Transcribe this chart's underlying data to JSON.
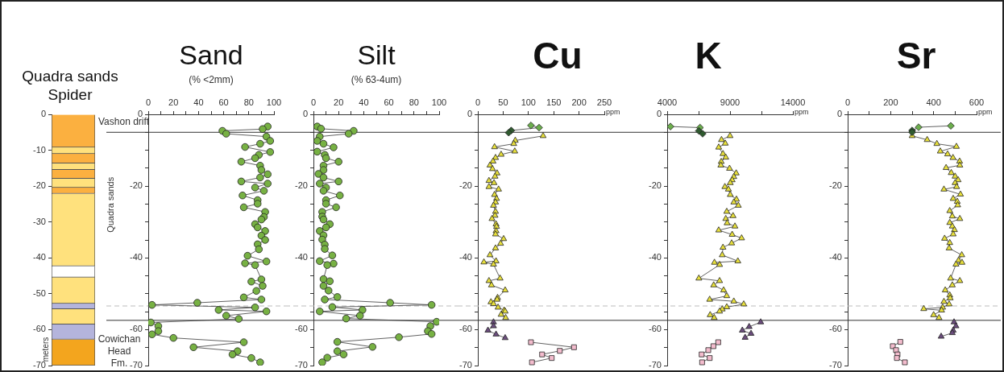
{
  "chart_data": [
    {
      "type": "bar",
      "title": "Quadra sands Spider",
      "ylabel": "meters",
      "categories": [
        null
      ],
      "stacked": true,
      "ylim": [
        -70,
        0
      ],
      "yticks": [
        0,
        -10,
        -20,
        -30,
        -40,
        -50,
        -60,
        -70
      ],
      "annotations": [
        "Vashon drift",
        "Quadra sands",
        "Cowichan Head Fm."
      ],
      "series": [
        {
          "color": "#fbb040",
          "values": [
            -9.2
          ]
        },
        {
          "color": "#ffe17d",
          "values": [
            -1.8
          ]
        },
        {
          "color": "#fbb040",
          "values": [
            -2.6
          ]
        },
        {
          "color": "#ffe17d",
          "values": [
            -1.8
          ]
        },
        {
          "color": "#fbb040",
          "values": [
            -2.5
          ]
        },
        {
          "color": "#ffe17d",
          "values": [
            -2.5
          ]
        },
        {
          "color": "#fbb040",
          "values": [
            -1.7
          ]
        },
        {
          "color": "#ffe17d",
          "values": [
            -20.2
          ]
        },
        {
          "color": "#ffffff",
          "values": [
            -3.1
          ]
        },
        {
          "color": "#ffe17d",
          "values": [
            -7.3
          ]
        },
        {
          "color": "#b4b4dc",
          "values": [
            -1.5
          ]
        },
        {
          "color": "#ffe17d",
          "values": [
            -4.3
          ]
        },
        {
          "color": "#b4b4dc",
          "values": [
            -4.2
          ]
        },
        {
          "color": "#f3a51e",
          "values": [
            -7.3
          ]
        }
      ]
    },
    {
      "type": "line",
      "title": "Sand",
      "subtitle": "(% <2mm)",
      "marker": "circle",
      "line_style": "solid",
      "xlim": [
        0,
        100
      ],
      "xticks": [
        0,
        {
          "value": 10,
          "label": null
        },
        20,
        {
          "value": 30,
          "label": null
        },
        40,
        {
          "value": 50,
          "label": null
        },
        60,
        {
          "value": 70,
          "label": null
        },
        80,
        {
          "value": 90,
          "label": null
        },
        100
      ],
      "ylim": [
        -70,
        0
      ],
      "yticks": [
        0,
        {
          "value": -5,
          "label": null
        },
        {
          "value": -10,
          "label": null
        },
        {
          "value": -15,
          "label": null
        },
        -20,
        {
          "value": -25,
          "label": null
        },
        {
          "value": -30,
          "label": null
        },
        {
          "value": -35,
          "label": null
        },
        -40,
        {
          "value": -45,
          "label": null
        },
        {
          "value": -50,
          "label": null
        },
        {
          "value": -55,
          "label": null
        },
        -60,
        {
          "value": -65,
          "label": null
        },
        -70
      ],
      "ref_lines": [
        {
          "axis": "y",
          "value": -5,
          "color": "#333333"
        },
        {
          "axis": "y",
          "value": -53.4,
          "color": "#bbbbbb",
          "line_style": "dashed"
        },
        {
          "axis": "y",
          "value": -57.4,
          "color": "#333333"
        }
      ],
      "series": [
        {
          "color": "#77b143",
          "x": [
            95,
            91,
            59,
            62,
            94,
            97,
            89,
            77,
            97,
            88,
            85,
            74,
            89,
            90,
            95,
            89,
            74,
            95,
            85,
            92,
            75,
            87,
            87,
            76,
            93,
            92,
            90,
            85,
            87,
            93,
            90,
            93,
            87,
            88,
            79,
            94,
            77,
            85,
            90,
            82,
            91,
            86,
            76,
            90,
            39,
            3,
            85,
            56,
            94,
            62,
            72,
            2,
            8,
            8,
            3,
            20,
            76,
            36,
            71,
            67,
            82,
            89
          ],
          "values": [
            -3.4,
            -4.1,
            -4.6,
            -5.4,
            -6.2,
            -7.4,
            -8.2,
            -9.1,
            -10.5,
            -11.3,
            -12.2,
            -13.2,
            -14.3,
            -15.5,
            -16.7,
            -17.6,
            -18.7,
            -19.3,
            -20.4,
            -21.3,
            -22.6,
            -23.9,
            -24.9,
            -25.9,
            -27.2,
            -28.6,
            -29.3,
            -30.6,
            -31.5,
            -32.5,
            -33.8,
            -35.0,
            -36.2,
            -37.6,
            -39.4,
            -41.0,
            -41.5,
            -42.0,
            -46.0,
            -46.6,
            -47.8,
            -49.2,
            -51.0,
            -51.6,
            -52.5,
            -53.1,
            -53.8,
            -54.5,
            -54.9,
            -56.1,
            -57.0,
            -58.0,
            -59.0,
            -60.4,
            -61.3,
            -62.3,
            -63.5,
            -64.9,
            -66.0,
            -66.9,
            -67.9,
            -69.1
          ]
        }
      ]
    },
    {
      "type": "line",
      "title": "Silt",
      "subtitle": "(% 63-4um)",
      "marker": "circle",
      "line_style": "solid",
      "xlim": [
        0,
        100
      ],
      "xticks": [
        0,
        {
          "value": 10,
          "label": null
        },
        20,
        {
          "value": 30,
          "label": null
        },
        40,
        {
          "value": 50,
          "label": null
        },
        60,
        {
          "value": 70,
          "label": null
        },
        80,
        {
          "value": 90,
          "label": null
        },
        100
      ],
      "ylim": [
        -70,
        0
      ],
      "yticks": [
        0,
        {
          "value": -5,
          "label": null
        },
        {
          "value": -10,
          "label": null
        },
        {
          "value": -15,
          "label": null
        },
        -20,
        {
          "value": -25,
          "label": null
        },
        {
          "value": -30,
          "label": null
        },
        {
          "value": -35,
          "label": null
        },
        -40,
        {
          "value": -45,
          "label": null
        },
        {
          "value": -50,
          "label": null
        },
        {
          "value": -55,
          "label": null
        },
        -60,
        {
          "value": -65,
          "label": null
        },
        -70
      ],
      "ref_lines": [
        {
          "axis": "y",
          "value": -5,
          "color": "#333333"
        },
        {
          "axis": "y",
          "value": -53.4,
          "color": "#bbbbbb",
          "line_style": "dashed"
        },
        {
          "axis": "y",
          "value": -57.4,
          "color": "#333333"
        }
      ],
      "series": [
        {
          "color": "#77b143",
          "x": [
            3,
            6,
            32,
            28,
            5,
            3,
            8,
            16,
            3,
            9,
            10,
            20,
            8,
            8,
            4,
            8,
            20,
            5,
            10,
            8,
            21,
            10,
            10,
            18,
            7,
            7,
            8,
            13,
            10,
            5,
            8,
            7,
            9,
            9,
            15,
            5,
            16,
            11,
            8,
            13,
            8,
            12,
            19,
            9,
            61,
            94,
            15,
            39,
            5,
            37,
            26,
            98,
            93,
            91,
            94,
            68,
            19,
            47,
            19,
            24,
            11,
            7
          ],
          "values": [
            -3.4,
            -4.0,
            -4.6,
            -5.4,
            -6.2,
            -7.4,
            -8.2,
            -9.2,
            -10.4,
            -11.3,
            -12.2,
            -13.2,
            -14.3,
            -15.5,
            -16.6,
            -17.6,
            -18.7,
            -19.3,
            -20.4,
            -21.3,
            -22.6,
            -23.9,
            -24.9,
            -25.9,
            -27.2,
            -28.5,
            -29.3,
            -30.6,
            -31.5,
            -32.5,
            -33.7,
            -34.9,
            -36.3,
            -37.5,
            -39.3,
            -40.9,
            -41.6,
            -42.0,
            -45.9,
            -46.5,
            -47.8,
            -49.1,
            -50.9,
            -51.6,
            -52.5,
            -53.1,
            -53.7,
            -54.5,
            -54.9,
            -56.1,
            -56.9,
            -57.8,
            -59.0,
            -60.4,
            -61.2,
            -62.1,
            -63.4,
            -64.8,
            -66.0,
            -66.9,
            -67.8,
            -69.1
          ]
        }
      ]
    },
    {
      "type": "line",
      "title": "Cu",
      "xlabel": "ppm",
      "line_style": "solid",
      "xlim": [
        0,
        250
      ],
      "xticks": [
        0,
        50,
        100,
        150,
        200,
        250
      ],
      "ylim": [
        -70,
        0
      ],
      "yticks": [
        0,
        {
          "value": -5,
          "label": null
        },
        {
          "value": -10,
          "label": null
        },
        {
          "value": -15,
          "label": null
        },
        -20,
        {
          "value": -25,
          "label": null
        },
        {
          "value": -30,
          "label": null
        },
        {
          "value": -35,
          "label": null
        },
        -40,
        {
          "value": -45,
          "label": null
        },
        {
          "value": -50,
          "label": null
        },
        {
          "value": -55,
          "label": null
        },
        -60,
        {
          "value": -65,
          "label": null
        },
        -70
      ],
      "ref_lines": [
        {
          "axis": "y",
          "value": -5,
          "color": "#333333"
        },
        {
          "axis": "y",
          "value": -53.4,
          "color": "#bbbbbb",
          "line_style": "dashed"
        },
        {
          "axis": "y",
          "value": -57.4,
          "color": "#333333"
        }
      ],
      "series": [
        {
          "colors": [
            "#6cae4d",
            "#6cae4d",
            "#2f5a2f",
            "#2f5a2f"
          ],
          "marker": "diamond",
          "x": [
            105,
            121,
            66,
            61
          ],
          "values": [
            -3.1,
            -3.7,
            -4.5,
            -5.1
          ]
        },
        {
          "color": "#e8e03c",
          "marker": "triangle",
          "x": [
            129,
            74,
            71,
            33,
            73,
            46,
            35,
            30,
            24,
            29,
            38,
            34,
            22,
            32,
            22,
            41,
            33,
            37,
            35,
            31,
            35,
            34,
            28,
            36,
            37,
            36,
            35,
            51,
            45,
            35,
            24,
            36,
            12,
            31,
            44,
            22,
            27,
            54,
            39,
            38,
            26,
            31,
            40,
            52,
            54,
            46,
            55
          ],
          "values": [
            -6.0,
            -7.3,
            -8.2,
            -9.1,
            -10.3,
            -11.2,
            -12.1,
            -13.1,
            -14.2,
            -15.2,
            -16.4,
            -17.3,
            -18.5,
            -19.1,
            -20.2,
            -20.9,
            -22.4,
            -23.5,
            -24.5,
            -25.4,
            -27.1,
            -28.2,
            -29.1,
            -30.6,
            -31.3,
            -32.5,
            -33.4,
            -34.7,
            -36.0,
            -37.3,
            -39.2,
            -40.9,
            -41.2,
            -41.8,
            -45.7,
            -46.4,
            -47.6,
            -49.0,
            -51.1,
            -51.6,
            -52.3,
            -52.8,
            -53.8,
            -54.6,
            -54.9,
            -55.8,
            -56.7
          ]
        },
        {
          "color": "#6b4d7d",
          "marker": "triangle",
          "x": [
            31,
            31,
            20,
            36,
            54
          ],
          "values": [
            -57.9,
            -59.0,
            -60.2,
            -61.3,
            -62.3
          ]
        },
        {
          "color": "#f3bccd",
          "marker": "square",
          "x": [
            105,
            190,
            162,
            127,
            146,
            107
          ],
          "values": [
            -63.5,
            -64.9,
            -65.9,
            -66.9,
            -67.9,
            -69.1
          ]
        }
      ]
    },
    {
      "type": "line",
      "title": "K",
      "xlabel": "ppm",
      "line_style": "solid",
      "xlim": [
        4000,
        14000
      ],
      "xticks": [
        4000,
        {
          "value": 6500,
          "label": null
        },
        9000,
        {
          "value": 11500,
          "label": null
        },
        14000
      ],
      "ylim": [
        -70,
        0
      ],
      "yticks": [
        0,
        {
          "value": -5,
          "label": null
        },
        {
          "value": -10,
          "label": null
        },
        {
          "value": -15,
          "label": null
        },
        -20,
        {
          "value": -25,
          "label": null
        },
        {
          "value": -30,
          "label": null
        },
        {
          "value": -35,
          "label": null
        },
        -40,
        {
          "value": -45,
          "label": null
        },
        {
          "value": -50,
          "label": null
        },
        {
          "value": -55,
          "label": null
        },
        -60,
        {
          "value": -65,
          "label": null
        },
        -70
      ],
      "ref_lines": [
        {
          "axis": "y",
          "value": -5,
          "color": "#333333"
        },
        {
          "axis": "y",
          "value": -53.4,
          "color": "#bbbbbb",
          "line_style": "dashed"
        },
        {
          "axis": "y",
          "value": -57.4,
          "color": "#333333"
        }
      ],
      "series": [
        {
          "colors": [
            "#6cae4d",
            "#6cae4d",
            "#2f5a2f",
            "#2f5a2f"
          ],
          "marker": "diamond",
          "x": [
            4260,
            6610,
            6520,
            6820
          ],
          "values": [
            -3.4,
            -3.7,
            -4.6,
            -5.4
          ]
        },
        {
          "color": "#e8e03c",
          "marker": "triangle",
          "x": [
            9000,
            8320,
            8620,
            8100,
            8440,
            8660,
            8300,
            8270,
            8960,
            9490,
            9300,
            9170,
            9020,
            8590,
            8870,
            9020,
            9510,
            9300,
            9660,
            8740,
            9240,
            8660,
            8770,
            9390,
            8100,
            9170,
            9920,
            9130,
            8440,
            8380,
            9620,
            7760,
            8170,
            6520,
            8170,
            7700,
            8490,
            8740,
            7380,
            9300,
            10090,
            8740,
            8380,
            8170,
            7420,
            7740
          ],
          "values": [
            -6.0,
            -7.1,
            -8.1,
            -9.2,
            -11.0,
            -12.0,
            -13.2,
            -14.2,
            -15.1,
            -16.4,
            -17.4,
            -18.3,
            -19.1,
            -20.2,
            -20.9,
            -22.4,
            -23.7,
            -24.5,
            -25.4,
            -27.1,
            -28.3,
            -29.1,
            -30.3,
            -31.2,
            -32.3,
            -33.5,
            -34.5,
            -35.9,
            -37.1,
            -39.2,
            -40.9,
            -41.3,
            -41.9,
            -45.7,
            -46.4,
            -47.6,
            -49.0,
            -50.6,
            -51.6,
            -52.1,
            -52.9,
            -53.7,
            -54.3,
            -54.9,
            -55.9,
            -56.7
          ]
        },
        {
          "color": "#6b4d7d",
          "marker": "triangle",
          "x": [
            11440,
            10520,
            9980,
            10670,
            10200
          ],
          "values": [
            -57.9,
            -59.2,
            -60.2,
            -61.1,
            -62.2
          ]
        },
        {
          "color": "#f3bccd",
          "marker": "square",
          "x": [
            8060,
            7680,
            7270,
            6740,
            7380,
            6780
          ],
          "values": [
            -63.5,
            -64.6,
            -65.7,
            -66.9,
            -67.9,
            -69.1
          ]
        }
      ]
    },
    {
      "type": "line",
      "title": "Sr",
      "xlabel": "ppm",
      "line_style": "solid",
      "xlim": [
        0,
        600
      ],
      "xticks": [
        0,
        {
          "value": 100,
          "label": null
        },
        200,
        {
          "value": 300,
          "label": null
        },
        400,
        {
          "value": 500,
          "label": null
        },
        600
      ],
      "ylim": [
        -70,
        0
      ],
      "yticks": [
        0,
        {
          "value": -5,
          "label": null
        },
        {
          "value": -10,
          "label": null
        },
        {
          "value": -15,
          "label": null
        },
        -20,
        {
          "value": -25,
          "label": null
        },
        {
          "value": -30,
          "label": null
        },
        {
          "value": -35,
          "label": null
        },
        -40,
        {
          "value": -45,
          "label": null
        },
        {
          "value": -50,
          "label": null
        },
        {
          "value": -55,
          "label": null
        },
        -60,
        {
          "value": -65,
          "label": null
        },
        -70
      ],
      "ref_lines": [
        {
          "axis": "y",
          "value": -5,
          "color": "#333333"
        },
        {
          "axis": "y",
          "value": -53.4,
          "color": "#bbbbbb",
          "line_style": "dashed"
        },
        {
          "axis": "y",
          "value": -57.4,
          "color": "#333333"
        }
      ],
      "series": [
        {
          "colors": [
            "#6cae4d",
            "#6cae4d",
            "#2f5a2f",
            "#2f5a2f"
          ],
          "marker": "diamond",
          "x": [
            480,
            330,
            300,
            300
          ],
          "values": [
            -3.2,
            -3.6,
            -4.5,
            -5.0
          ]
        },
        {
          "color": "#e8e03c",
          "marker": "triangle",
          "x": [
            300,
            370,
            415,
            506,
            431,
            465,
            490,
            521,
            522,
            458,
            482,
            500,
            514,
            500,
            507,
            448,
            525,
            491,
            510,
            512,
            475,
            487,
            522,
            475,
            487,
            497,
            491,
            451,
            475,
            472,
            531,
            516,
            532,
            504,
            479,
            522,
            487,
            454,
            475,
            477,
            448,
            472,
            442,
            354,
            437,
            400,
            425
          ],
          "values": [
            -6.0,
            -7.1,
            -8.2,
            -9.0,
            -10.3,
            -11.1,
            -12.1,
            -13.1,
            -14.2,
            -14.9,
            -16.3,
            -17.3,
            -18.3,
            -19.1,
            -20.2,
            -20.9,
            -22.3,
            -23.5,
            -24.3,
            -25.3,
            -26.9,
            -28.4,
            -29.1,
            -30.2,
            -31.2,
            -32.2,
            -33.4,
            -34.6,
            -35.8,
            -37.3,
            -39.2,
            -40.7,
            -41.3,
            -41.8,
            -45.7,
            -46.4,
            -47.6,
            -49.0,
            -50.4,
            -51.2,
            -52.2,
            -52.9,
            -53.8,
            -54.2,
            -54.6,
            -55.9,
            -56.7
          ]
        },
        {
          "color": "#6b4d7d",
          "marker": "triangle",
          "x": [
            495,
            504,
            491,
            487,
            435
          ],
          "values": [
            -57.9,
            -59.0,
            -60.2,
            -60.9,
            -61.9
          ]
        },
        {
          "color": "#f3bccd",
          "marker": "square",
          "x": [
            245,
            210,
            225,
            232,
            229,
            266
          ],
          "values": [
            -63.4,
            -64.6,
            -65.7,
            -66.9,
            -67.9,
            -69.1
          ]
        }
      ]
    }
  ]
}
